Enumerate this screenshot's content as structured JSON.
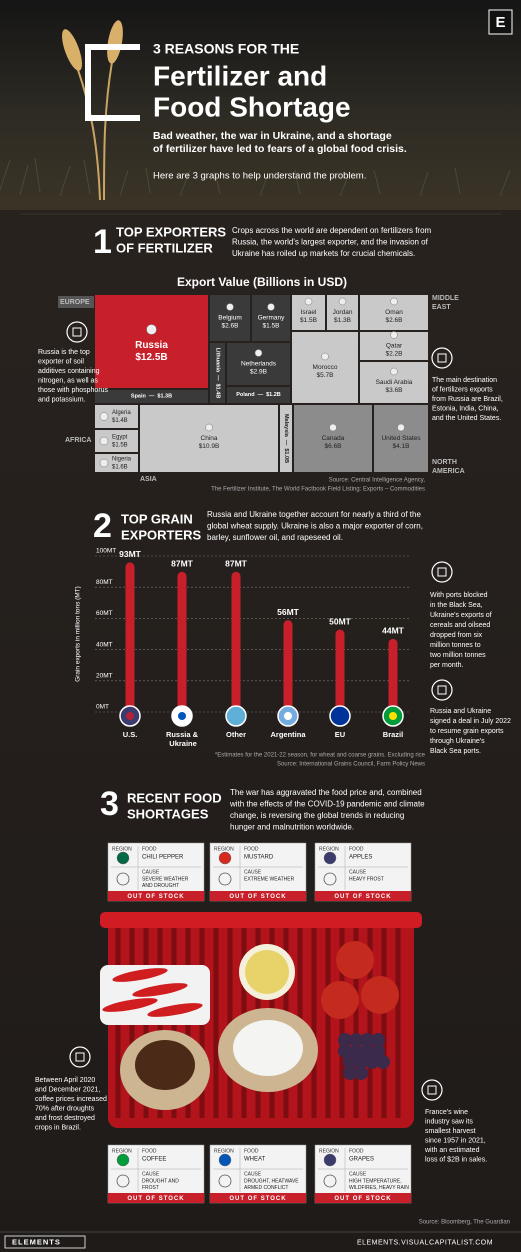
{
  "header": {
    "logo": "E",
    "kicker": "3 REASONS FOR THE",
    "title_lines": [
      "Fertilizer and",
      "Food Shortage"
    ],
    "subtitle_lines": [
      "Bad weather, the war in Ukraine, and a shortage",
      "of fertilizer have led to fears of a global food crisis."
    ],
    "intro": "Here are 3 graphs to help understand the problem."
  },
  "sections": [
    {
      "number": "1",
      "heading_lines": [
        "TOP EXPORTERS",
        "OF FERTILIZER"
      ],
      "description_lines": [
        "Crops across the world are dependent on fertilizers from",
        "Russia, the world's largest exporter, and the invasion of",
        "Ukraine has roiled up markets for crucial chemicals."
      ],
      "notes": [
        {
          "lines": [
            "Russia is the top",
            "exporter of soil",
            "additives containing",
            "nitrogen, as well as",
            "those with phosphorus",
            "and potassium."
          ]
        },
        {
          "lines": [
            "The main destination",
            "of fertilizers exports",
            "from Russia are Brazil,",
            "Estonia, India, China,",
            "and the United States."
          ]
        }
      ],
      "source_lines": [
        "Source: Central Intelligence Agency,",
        "The Fertilizer Institute, The World Factbook Field Listing: Exports – Commodities"
      ]
    },
    {
      "number": "2",
      "heading_lines": [
        "TOP GRAIN",
        "EXPORTERS"
      ],
      "description_lines": [
        "Russia and Ukraine together account for nearly a third of the",
        "global wheat supply. Ukraine is also a major exporter of corn,",
        "barley, sunflower oil, and rapeseed oil."
      ],
      "notes": [
        {
          "lines": [
            "With ports blocked",
            "in the Black Sea,",
            "Ukraine's exports of",
            "cereals and oilseed",
            "dropped from six",
            "million tonnes to",
            "two million tonnes",
            "per month."
          ]
        },
        {
          "lines": [
            "Russia and Ukraine",
            "signed a deal in July 2022",
            "to resume grain exports",
            "through Ukraine's",
            "Black Sea ports."
          ]
        }
      ],
      "source_lines": [
        "*Estimates for the 2021-22 season, for wheat and coarse grains. Excluding rice",
        "Source: International Grains Council, Farm Policy News"
      ]
    },
    {
      "number": "3",
      "heading_lines": [
        "RECENT FOOD",
        "SHORTAGES"
      ],
      "description_lines": [
        "The war has aggravated the food price and, combined",
        "with the effects of the COVID-19 pandemic and climate",
        "change, is reversing the global trends in reducing",
        "hunger and malnutrition worldwide."
      ],
      "notes": [
        {
          "lines": [
            "Between April 2020",
            "and December 2021,",
            "coffee prices increased",
            "70% after droughts",
            "and frost destroyed",
            "crops in Brazil."
          ]
        },
        {
          "lines": [
            "France's wine",
            "industry saw its",
            "smallest harvest",
            "since 1957 in 2021,",
            "with an estimated",
            "loss of $2B in sales."
          ]
        }
      ],
      "source_lines": [
        "Source: Bloomberg, The Guardian"
      ]
    }
  ],
  "chart_data": [
    {
      "type": "treemap",
      "title": "Export Value (Billions in USD)",
      "label_separator": "—",
      "regions": [
        [
          "EUROPE"
        ],
        [
          "MIDDLE",
          "EAST"
        ],
        [
          "AFRICA"
        ],
        [
          "ASIA"
        ],
        [
          "NORTH",
          "AMERICA"
        ]
      ],
      "categories": [
        "Russia",
        "Spain",
        "Lithuania",
        "Belgium",
        "Germany",
        "Netherlands",
        "Poland",
        "Israel",
        "Jordan",
        "Oman",
        "Qatar",
        "Morocco",
        "Saudi Arabia",
        "Algeria",
        "Egypt",
        "Nigeria",
        "China",
        "Malaysia",
        "Canada",
        "United States"
      ],
      "values": [
        12.5,
        1.3,
        1.4,
        2.6,
        1.5,
        2.9,
        1.2,
        1.5,
        1.3,
        2.6,
        2.2,
        5.7,
        3.6,
        1.4,
        1.5,
        1.6,
        10.9,
        1.0,
        6.6,
        4.1
      ],
      "value_labels": [
        "$12.5B",
        "$1.3B",
        "$1.4B",
        "$2.6B",
        "$1.5B",
        "$2.9B",
        "$1.2B",
        "$1.5B",
        "$1.3B",
        "$2.6B",
        "$2.2B",
        "$5.7B",
        "$3.6B",
        "$1.4B",
        "$1.5B",
        "$1.6B",
        "$10.9B",
        "$1.0B",
        "$6.6B",
        "$4.1B"
      ],
      "colors": [
        "#c8202a",
        "#3a3a3a",
        "#3a3a3a",
        "#3a3a3a",
        "#3a3a3a",
        "#3a3a3a",
        "#3a3a3a",
        "#c9c9c9",
        "#c9c9c9",
        "#c9c9c9",
        "#c9c9c9",
        "#c9c9c9",
        "#c9c9c9",
        "#c9c9c9",
        "#c9c9c9",
        "#c9c9c9",
        "#c9c9c9",
        "#c9c9c9",
        "#8c8c8c",
        "#8c8c8c"
      ]
    },
    {
      "type": "lollipop",
      "y_label": "Grain exports in million tons (MT)",
      "color": "#c8202a",
      "categories": [
        "U.S.",
        "Russia & Ukraine",
        "Other",
        "Argentina",
        "EU",
        "Brazil"
      ],
      "values": [
        93,
        87,
        87,
        56,
        50,
        44
      ],
      "value_labels": [
        "93MT",
        "87MT",
        "87MT",
        "56MT",
        "50MT",
        "44MT"
      ],
      "ylim": [
        0,
        100
      ],
      "yticks": [
        {
          "value": 0,
          "label": "0MT"
        },
        {
          "value": 20,
          "label": "20MT"
        },
        {
          "value": 40,
          "label": "40MT"
        },
        {
          "value": 60,
          "label": "60MT"
        },
        {
          "value": 80,
          "label": "80MT"
        },
        {
          "value": 100,
          "label": "100MT"
        }
      ],
      "grid": true
    }
  ],
  "cards": {
    "labels": {
      "region": "REGION",
      "food": "FOOD",
      "cause": "CAUSE",
      "status": "OUT OF STOCK"
    },
    "items": [
      {
        "food": "CHILI PEPPER",
        "cause_lines": [
          "SEVERE WEATHER",
          "AND DROUGHT"
        ]
      },
      {
        "food": "MUSTARD",
        "cause_lines": [
          "EXTREME WEATHER"
        ]
      },
      {
        "food": "APPLES",
        "cause_lines": [
          "HEAVY FROST"
        ]
      },
      {
        "food": "COFFEE",
        "cause_lines": [
          "DROUGHT AND",
          "FROST"
        ]
      },
      {
        "food": "WHEAT",
        "cause_lines": [
          "DROUGHT, HEATWAVE",
          "ARMED CONFLICT"
        ]
      },
      {
        "food": "GRAPES",
        "cause_lines": [
          "HIGH TEMPERATURE,",
          "WILDFIRES, HEAVY RAIN"
        ]
      }
    ]
  },
  "footer": {
    "brand": "ELEMENTS",
    "url": "ELEMENTS.VISUALCAPITALIST.COM"
  }
}
